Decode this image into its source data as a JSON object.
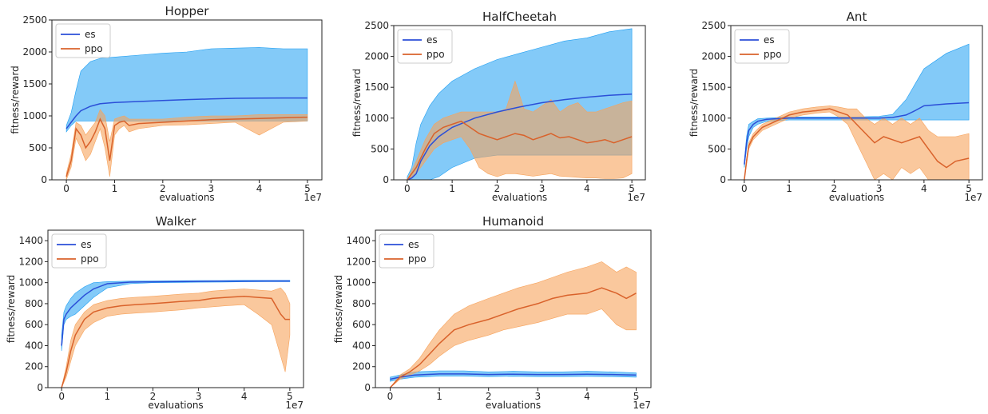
{
  "colors": {
    "es_line": "#2b4fd8",
    "es_band": "#1e9ef2",
    "ppo_line": "#d9622b",
    "ppo_band": "#f7a35c"
  },
  "chart_data": [
    {
      "type": "line",
      "title": "Hopper",
      "xlabel": "evaluations",
      "ylabel": "fitness/reward",
      "x_offset_label": "1e7",
      "xlim": [
        -0.3,
        5.3
      ],
      "ylim": [
        0,
        2500
      ],
      "xticks": [
        0,
        1,
        2,
        3,
        4,
        5
      ],
      "yticks": [
        0,
        500,
        1000,
        1500,
        2000,
        2500
      ],
      "legend": {
        "position": "top-left",
        "entries": [
          "es",
          "ppo"
        ]
      },
      "series": [
        {
          "name": "es",
          "x": [
            0,
            0.05,
            0.1,
            0.2,
            0.3,
            0.5,
            0.7,
            1.0,
            1.5,
            2.0,
            2.5,
            3.0,
            3.5,
            4.0,
            4.5,
            5.0
          ],
          "y": [
            800,
            850,
            900,
            1000,
            1080,
            1150,
            1190,
            1210,
            1225,
            1240,
            1255,
            1265,
            1275,
            1278,
            1280,
            1280
          ],
          "upper": [
            850,
            950,
            1050,
            1400,
            1700,
            1850,
            1900,
            1920,
            1950,
            1980,
            2000,
            2050,
            2060,
            2070,
            2050,
            2050
          ],
          "lower": [
            750,
            800,
            850,
            920,
            920,
            920,
            920,
            920,
            920,
            920,
            920,
            920,
            920,
            920,
            920,
            920
          ]
        },
        {
          "name": "ppo",
          "x": [
            0,
            0.1,
            0.2,
            0.3,
            0.4,
            0.5,
            0.6,
            0.7,
            0.8,
            0.9,
            1.0,
            1.1,
            1.2,
            1.3,
            1.5,
            2.0,
            2.5,
            3.0,
            3.5,
            4.0,
            4.5,
            5.0
          ],
          "y": [
            50,
            300,
            800,
            700,
            500,
            600,
            750,
            950,
            800,
            300,
            850,
            900,
            920,
            850,
            880,
            900,
            920,
            940,
            950,
            960,
            970,
            980
          ],
          "upper": [
            100,
            400,
            900,
            850,
            700,
            800,
            900,
            1100,
            1000,
            600,
            950,
            980,
            1000,
            950,
            950,
            950,
            980,
            1000,
            1000,
            1020,
            1020,
            1020
          ],
          "lower": [
            0,
            200,
            650,
            500,
            300,
            400,
            600,
            800,
            500,
            50,
            700,
            800,
            850,
            750,
            800,
            850,
            860,
            880,
            900,
            700,
            900,
            920
          ]
        }
      ]
    },
    {
      "type": "line",
      "title": "HalfCheetah",
      "xlabel": "evaluations",
      "ylabel": "fitness/reward",
      "x_offset_label": "1e7",
      "xlim": [
        -0.3,
        5.3
      ],
      "ylim": [
        0,
        2500
      ],
      "xticks": [
        0,
        1,
        2,
        3,
        4,
        5
      ],
      "yticks": [
        0,
        500,
        1000,
        1500,
        2000,
        2500
      ],
      "legend": {
        "position": "top-left",
        "entries": [
          "es",
          "ppo"
        ]
      },
      "series": [
        {
          "name": "es",
          "x": [
            0,
            0.1,
            0.2,
            0.3,
            0.5,
            0.7,
            1.0,
            1.5,
            2.0,
            2.5,
            3.0,
            3.5,
            4.0,
            4.5,
            5.0
          ],
          "y": [
            0,
            30,
            100,
            300,
            550,
            700,
            850,
            1000,
            1100,
            1180,
            1250,
            1300,
            1340,
            1370,
            1390
          ],
          "upper": [
            50,
            200,
            600,
            900,
            1200,
            1400,
            1600,
            1800,
            1950,
            2050,
            2150,
            2250,
            2300,
            2400,
            2450
          ],
          "lower": [
            0,
            0,
            0,
            0,
            0,
            50,
            200,
            350,
            400,
            400,
            400,
            400,
            400,
            400,
            400
          ]
        },
        {
          "name": "ppo",
          "x": [
            0,
            0.2,
            0.4,
            0.6,
            0.8,
            1.0,
            1.2,
            1.4,
            1.6,
            1.8,
            2.0,
            2.2,
            2.4,
            2.6,
            2.8,
            3.0,
            3.2,
            3.4,
            3.6,
            3.8,
            4.0,
            4.2,
            4.4,
            4.6,
            4.8,
            5.0
          ],
          "y": [
            0,
            200,
            500,
            750,
            850,
            900,
            950,
            850,
            750,
            700,
            650,
            700,
            750,
            720,
            650,
            700,
            750,
            680,
            700,
            650,
            600,
            620,
            650,
            600,
            650,
            700
          ],
          "upper": [
            0,
            300,
            650,
            900,
            1000,
            1050,
            1100,
            1100,
            1100,
            1100,
            1100,
            1150,
            1600,
            1150,
            1100,
            1200,
            1300,
            1100,
            1200,
            1250,
            1100,
            1100,
            1150,
            1200,
            1250,
            1280
          ],
          "lower": [
            0,
            100,
            300,
            500,
            600,
            650,
            700,
            500,
            200,
            100,
            50,
            100,
            100,
            80,
            60,
            80,
            100,
            60,
            50,
            40,
            30,
            30,
            20,
            20,
            30,
            100
          ]
        }
      ]
    },
    {
      "type": "line",
      "title": "Ant",
      "xlabel": "evaluations",
      "ylabel": "fitness/reward",
      "x_offset_label": "1e7",
      "xlim": [
        -0.3,
        5.3
      ],
      "ylim": [
        0,
        2500
      ],
      "xticks": [
        0,
        1,
        2,
        3,
        4,
        5
      ],
      "yticks": [
        0,
        500,
        1000,
        1500,
        2000,
        2500
      ],
      "legend": {
        "position": "top-left",
        "entries": [
          "es",
          "ppo"
        ]
      },
      "series": [
        {
          "name": "es",
          "x": [
            0,
            0.05,
            0.1,
            0.2,
            0.3,
            0.5,
            1.0,
            1.5,
            2.0,
            2.5,
            3.0,
            3.3,
            3.6,
            3.8,
            4.0,
            4.5,
            5.0
          ],
          "y": [
            250,
            600,
            800,
            900,
            950,
            980,
            1000,
            1000,
            1000,
            1000,
            1000,
            1010,
            1050,
            1120,
            1200,
            1230,
            1250
          ],
          "upper": [
            300,
            700,
            900,
            950,
            990,
            1000,
            1020,
            1020,
            1020,
            1020,
            1030,
            1060,
            1300,
            1550,
            1800,
            2050,
            2200
          ],
          "lower": [
            200,
            500,
            700,
            850,
            900,
            950,
            970,
            970,
            970,
            970,
            970,
            970,
            970,
            970,
            970,
            970,
            970
          ]
        },
        {
          "name": "ppo",
          "x": [
            0,
            0.05,
            0.1,
            0.2,
            0.4,
            0.7,
            1.0,
            1.3,
            1.6,
            1.9,
            2.1,
            2.3,
            2.5,
            2.7,
            2.9,
            3.1,
            3.3,
            3.5,
            3.7,
            3.9,
            4.1,
            4.3,
            4.5,
            4.7,
            5.0
          ],
          "y": [
            0,
            300,
            550,
            700,
            850,
            950,
            1050,
            1100,
            1120,
            1150,
            1100,
            1050,
            900,
            750,
            600,
            700,
            650,
            600,
            650,
            700,
            500,
            300,
            200,
            300,
            350
          ],
          "upper": [
            0,
            350,
            600,
            750,
            900,
            1000,
            1100,
            1150,
            1180,
            1200,
            1180,
            1150,
            1150,
            1000,
            900,
            1000,
            900,
            1000,
            900,
            1000,
            800,
            700,
            700,
            700,
            750
          ],
          "lower": [
            0,
            250,
            500,
            650,
            800,
            900,
            1000,
            1050,
            1080,
            1100,
            1020,
            900,
            600,
            300,
            0,
            100,
            0,
            200,
            100,
            200,
            0,
            0,
            0,
            0,
            0
          ]
        }
      ]
    },
    {
      "type": "line",
      "title": "Walker",
      "xlabel": "evaluations",
      "ylabel": "fitness/reward",
      "x_offset_label": "1e7",
      "xlim": [
        -0.3,
        5.3
      ],
      "ylim": [
        0,
        1500
      ],
      "xticks": [
        0,
        1,
        2,
        3,
        4,
        5
      ],
      "yticks": [
        0,
        200,
        400,
        600,
        800,
        1000,
        1200,
        1400
      ],
      "legend": {
        "position": "top-left",
        "entries": [
          "es",
          "ppo"
        ]
      },
      "series": [
        {
          "name": "es",
          "x": [
            0,
            0.05,
            0.1,
            0.2,
            0.3,
            0.5,
            0.7,
            1.0,
            1.5,
            2.0,
            2.5,
            3.0,
            3.5,
            4.0,
            4.5,
            5.0
          ],
          "y": [
            400,
            650,
            700,
            760,
            800,
            880,
            940,
            990,
            1005,
            1008,
            1010,
            1012,
            1014,
            1015,
            1016,
            1016
          ],
          "upper": [
            500,
            720,
            780,
            850,
            900,
            960,
            1000,
            1010,
            1015,
            1016,
            1018,
            1020,
            1020,
            1022,
            1022,
            1022
          ],
          "lower": [
            350,
            600,
            650,
            680,
            700,
            780,
            860,
            950,
            990,
            1000,
            1002,
            1004,
            1006,
            1008,
            1010,
            1010
          ]
        },
        {
          "name": "ppo",
          "x": [
            0,
            0.1,
            0.2,
            0.3,
            0.5,
            0.7,
            1.0,
            1.3,
            1.6,
            2.0,
            2.3,
            2.6,
            3.0,
            3.3,
            3.6,
            4.0,
            4.3,
            4.6,
            4.8,
            4.9,
            5.0
          ],
          "y": [
            0,
            150,
            350,
            500,
            650,
            720,
            760,
            780,
            790,
            800,
            810,
            820,
            830,
            850,
            860,
            870,
            860,
            850,
            700,
            650,
            650
          ],
          "upper": [
            0,
            200,
            450,
            600,
            720,
            790,
            830,
            850,
            860,
            870,
            880,
            890,
            900,
            920,
            930,
            940,
            930,
            920,
            950,
            900,
            800
          ],
          "lower": [
            0,
            100,
            250,
            400,
            550,
            620,
            680,
            700,
            710,
            720,
            730,
            740,
            760,
            770,
            780,
            790,
            700,
            600,
            300,
            150,
            500
          ]
        }
      ]
    },
    {
      "type": "line",
      "title": "Humanoid",
      "xlabel": "evaluations",
      "ylabel": "fitness/reward",
      "x_offset_label": "1e7",
      "xlim": [
        -0.3,
        5.3
      ],
      "ylim": [
        0,
        1500
      ],
      "xticks": [
        0,
        1,
        2,
        3,
        4,
        5
      ],
      "yticks": [
        0,
        200,
        400,
        600,
        800,
        1000,
        1200,
        1400
      ],
      "legend": {
        "position": "top-left",
        "entries": [
          "es",
          "ppo"
        ]
      },
      "series": [
        {
          "name": "es",
          "x": [
            0,
            0.2,
            0.5,
            1.0,
            1.5,
            2.0,
            2.5,
            3.0,
            3.5,
            4.0,
            4.5,
            5.0
          ],
          "y": [
            80,
            100,
            120,
            130,
            130,
            125,
            128,
            125,
            125,
            127,
            125,
            120
          ],
          "upper": [
            100,
            120,
            150,
            160,
            160,
            150,
            155,
            150,
            150,
            155,
            150,
            140
          ],
          "lower": [
            60,
            80,
            100,
            110,
            110,
            105,
            108,
            105,
            105,
            107,
            105,
            100
          ]
        },
        {
          "name": "ppo",
          "x": [
            0,
            0.2,
            0.4,
            0.6,
            0.8,
            1.0,
            1.3,
            1.6,
            2.0,
            2.3,
            2.6,
            3.0,
            3.3,
            3.6,
            4.0,
            4.3,
            4.6,
            4.8,
            5.0
          ],
          "y": [
            0,
            100,
            150,
            220,
            320,
            420,
            550,
            600,
            650,
            700,
            750,
            800,
            850,
            880,
            900,
            950,
            900,
            850,
            900
          ],
          "upper": [
            0,
            120,
            180,
            280,
            420,
            550,
            700,
            780,
            850,
            900,
            950,
            1000,
            1050,
            1100,
            1150,
            1200,
            1100,
            1150,
            1100
          ],
          "lower": [
            0,
            80,
            120,
            160,
            220,
            300,
            400,
            450,
            500,
            550,
            580,
            620,
            660,
            700,
            700,
            750,
            600,
            550,
            550
          ]
        }
      ]
    }
  ]
}
